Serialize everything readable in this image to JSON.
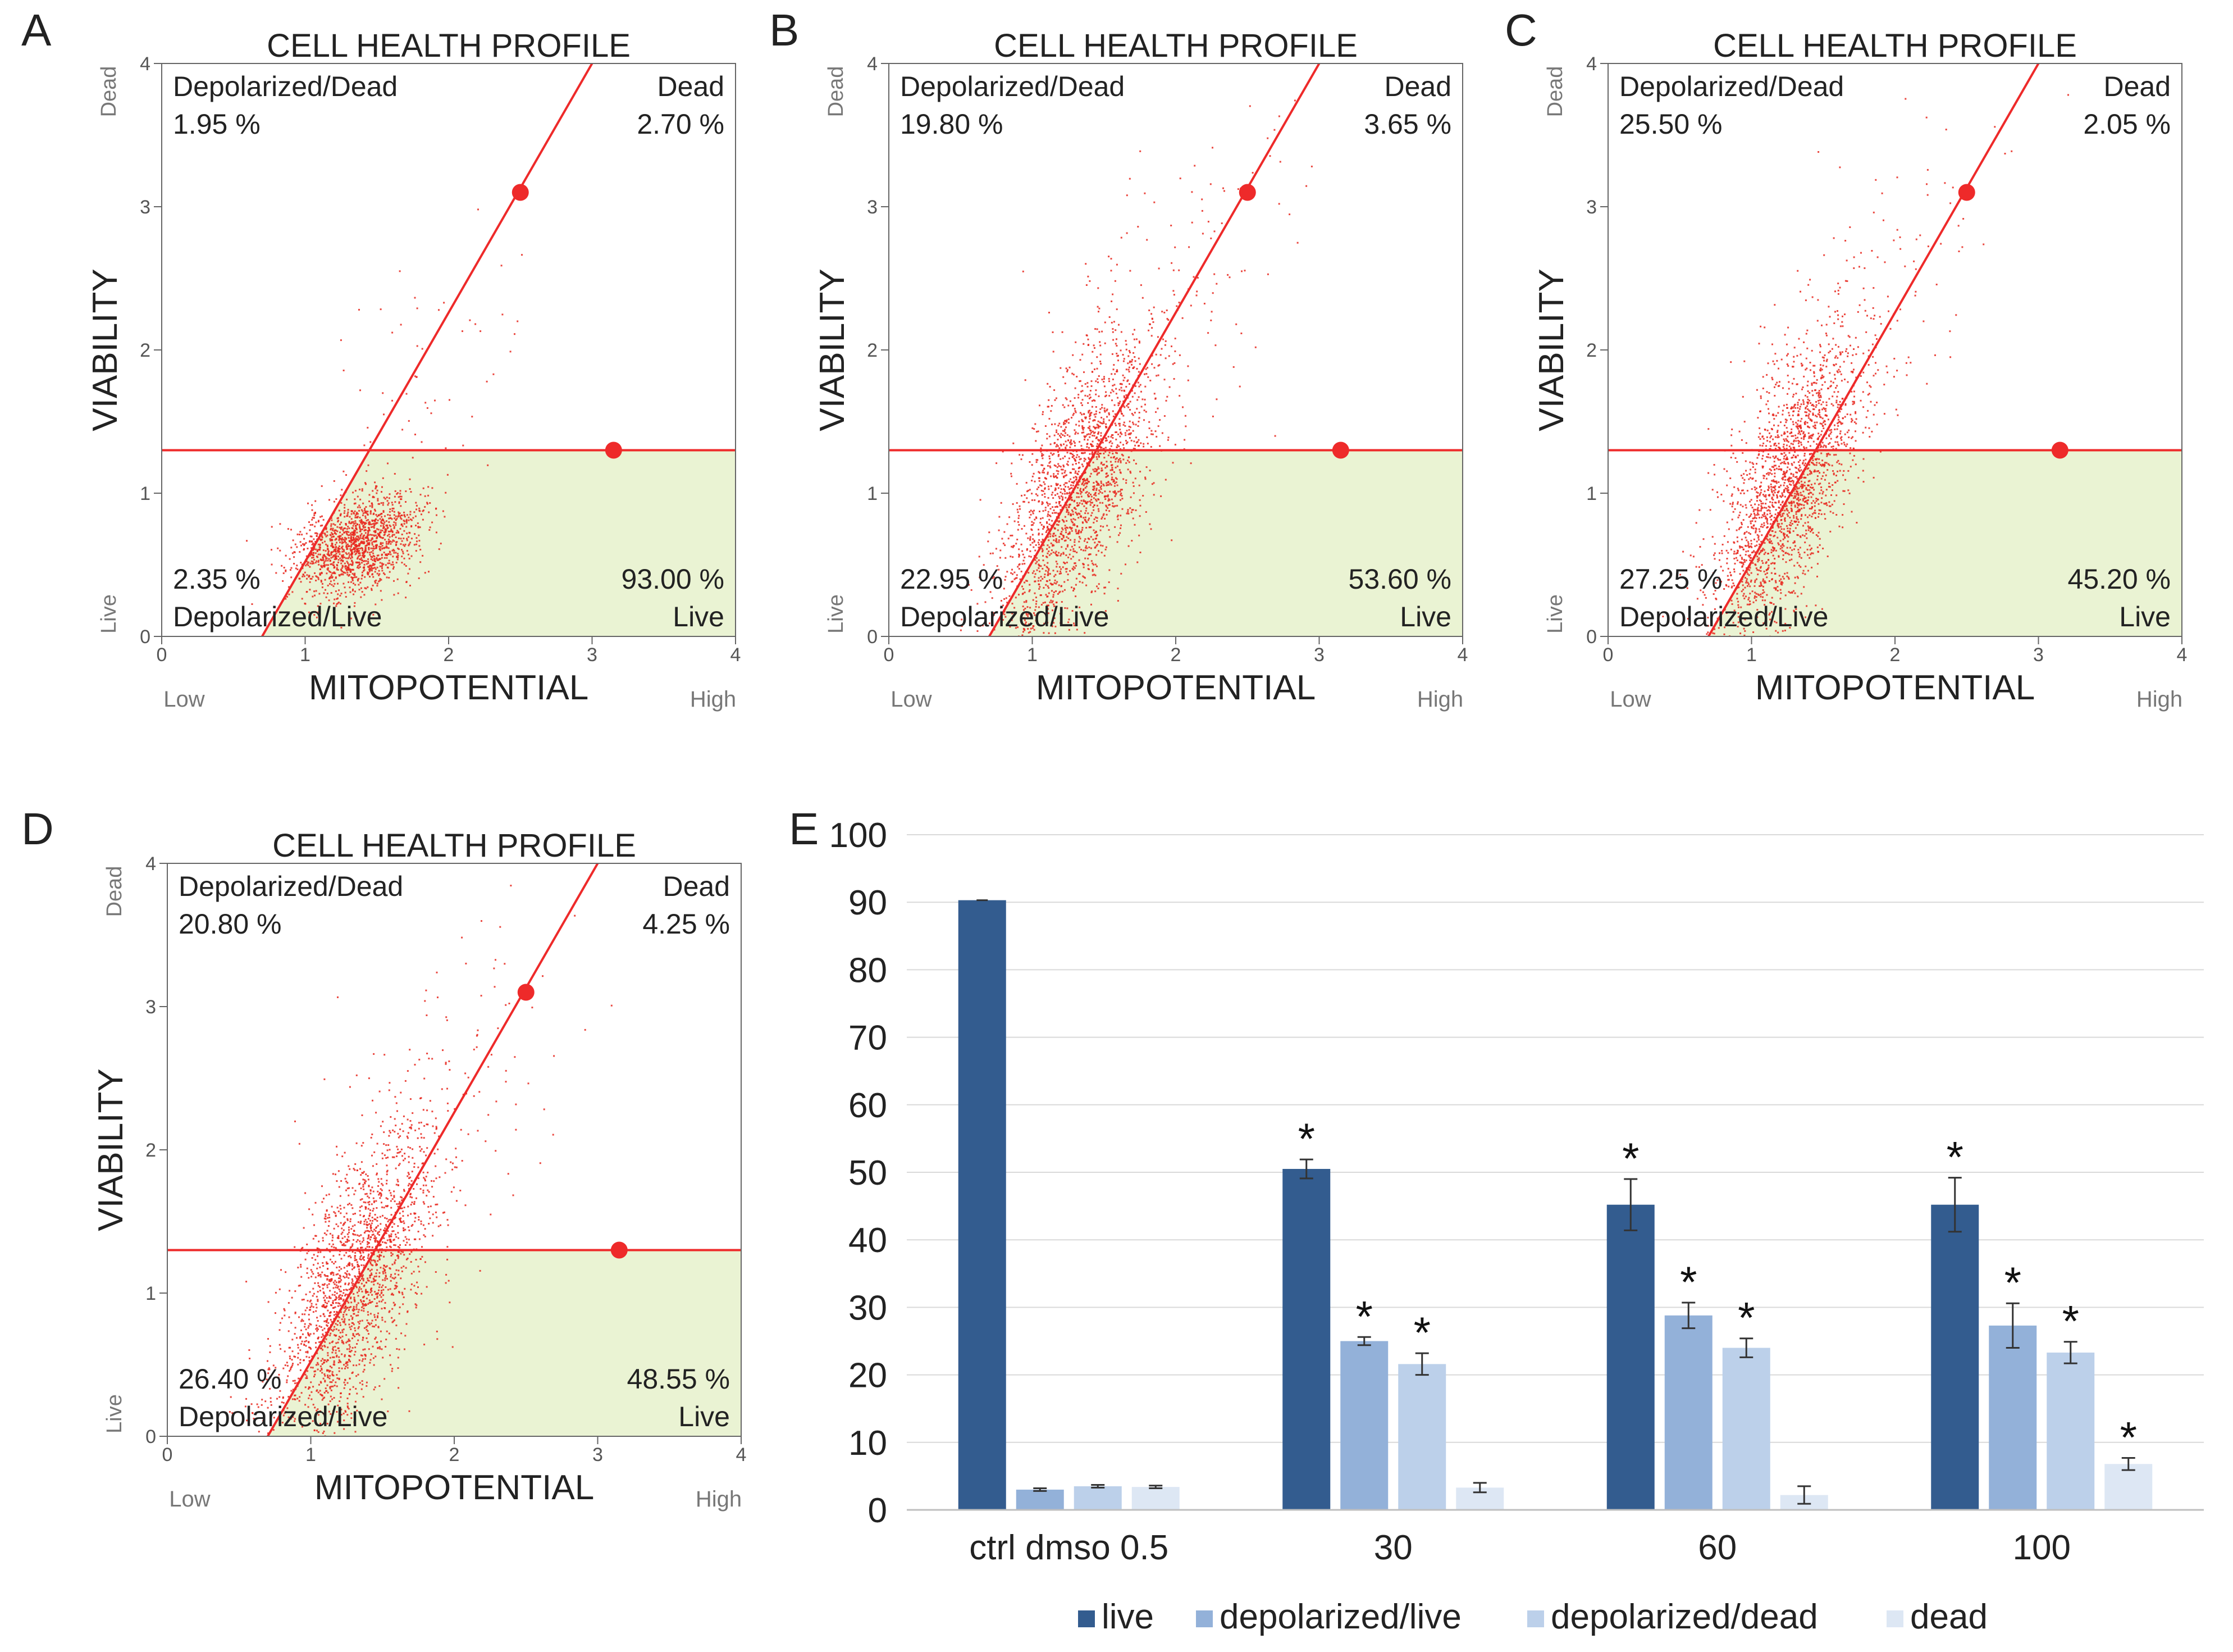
{
  "chart_data": [
    {
      "panel": "A",
      "type": "scatter",
      "title": "CELL HEALTH PROFILE",
      "xlabel": "MITOPOTENTIAL",
      "ylabel": "VIABILITY",
      "x_low_label": "Low",
      "x_high_label": "High",
      "y_low_label": "Live",
      "y_high_label": "Dead",
      "xlim": [
        0,
        4
      ],
      "ylim": [
        0,
        4
      ],
      "xticks": [
        "0",
        "1",
        "2",
        "3",
        "4"
      ],
      "yticks": [
        "0",
        "1",
        "2",
        "3",
        "4"
      ],
      "gate_horizontal_y": 1.3,
      "gate_diagonal": [
        [
          0.7,
          0
        ],
        [
          3.0,
          4.0
        ]
      ],
      "handles": [
        [
          2.5,
          3.1
        ],
        [
          3.15,
          1.3
        ]
      ],
      "quadrants": {
        "depolarized_dead": {
          "label": "Depolarized/Dead",
          "pct": "1.95 %"
        },
        "dead": {
          "label": "Dead",
          "pct": "2.70 %"
        },
        "depolarized_live": {
          "label": "Depolarized/Live",
          "pct": "2.35 %"
        },
        "live": {
          "label": "Live",
          "pct": "93.00 %"
        }
      },
      "cloud": {
        "cx": 1.35,
        "cy": 0.65,
        "sx": 0.22,
        "sy": 0.18,
        "rho": 0.35,
        "n": 1500,
        "seed": 11,
        "tail": {
          "n": 60,
          "cx": 1.9,
          "cy": 1.9,
          "sx": 0.45,
          "sy": 0.6,
          "rho": 0.6
        }
      }
    },
    {
      "panel": "B",
      "type": "scatter",
      "title": "CELL HEALTH PROFILE",
      "xlabel": "MITOPOTENTIAL",
      "ylabel": "VIABILITY",
      "x_low_label": "Low",
      "x_high_label": "High",
      "y_low_label": "Live",
      "y_high_label": "Dead",
      "xlim": [
        0,
        4
      ],
      "ylim": [
        0,
        4
      ],
      "xticks": [
        "0",
        "1",
        "2",
        "3",
        "4"
      ],
      "yticks": [
        "0",
        "1",
        "2",
        "3",
        "4"
      ],
      "gate_horizontal_y": 1.3,
      "gate_diagonal": [
        [
          0.7,
          0
        ],
        [
          3.0,
          4.0
        ]
      ],
      "handles": [
        [
          2.5,
          3.1
        ],
        [
          3.15,
          1.3
        ]
      ],
      "quadrants": {
        "depolarized_dead": {
          "label": "Depolarized/Dead",
          "pct": "19.80 %"
        },
        "dead": {
          "label": "Dead",
          "pct": "3.65 %"
        },
        "depolarized_live": {
          "label": "Depolarized/Live",
          "pct": "22.95 %"
        },
        "live": {
          "label": "Live",
          "pct": "53.60 %"
        }
      },
      "cloud": {
        "cx": 1.3,
        "cy": 1.0,
        "sx": 0.28,
        "sy": 0.55,
        "rho": 0.65,
        "n": 2000,
        "seed": 23,
        "tail": {
          "n": 120,
          "cx": 1.9,
          "cy": 2.3,
          "sx": 0.5,
          "sy": 0.7,
          "rho": 0.6
        }
      }
    },
    {
      "panel": "C",
      "type": "scatter",
      "title": "CELL HEALTH PROFILE",
      "xlabel": "MITOPOTENTIAL",
      "ylabel": "VIABILITY",
      "x_low_label": "Low",
      "x_high_label": "High",
      "y_low_label": "Live",
      "y_high_label": "Dead",
      "xlim": [
        0,
        4
      ],
      "ylim": [
        0,
        4
      ],
      "xticks": [
        "0",
        "1",
        "2",
        "3",
        "4"
      ],
      "yticks": [
        "0",
        "1",
        "2",
        "3",
        "4"
      ],
      "gate_horizontal_y": 1.3,
      "gate_diagonal": [
        [
          0.7,
          0
        ],
        [
          3.0,
          4.0
        ]
      ],
      "handles": [
        [
          2.5,
          3.1
        ],
        [
          3.15,
          1.3
        ]
      ],
      "quadrants": {
        "depolarized_dead": {
          "label": "Depolarized/Dead",
          "pct": "25.50 %"
        },
        "dead": {
          "label": "Dead",
          "pct": "2.05 %"
        },
        "depolarized_live": {
          "label": "Depolarized/Live",
          "pct": "27.25 %"
        },
        "live": {
          "label": "Live",
          "pct": "45.20 %"
        }
      },
      "cloud": {
        "cx": 1.25,
        "cy": 1.05,
        "sx": 0.26,
        "sy": 0.55,
        "rho": 0.65,
        "n": 2000,
        "seed": 37,
        "tail": {
          "n": 120,
          "cx": 1.8,
          "cy": 2.3,
          "sx": 0.45,
          "sy": 0.7,
          "rho": 0.6
        }
      }
    },
    {
      "panel": "D",
      "type": "scatter",
      "title": "CELL HEALTH PROFILE",
      "xlabel": "MITOPOTENTIAL",
      "ylabel": "VIABILITY",
      "x_low_label": "Low",
      "x_high_label": "High",
      "y_low_label": "Live",
      "y_high_label": "Dead",
      "xlim": [
        0,
        4
      ],
      "ylim": [
        0,
        4
      ],
      "xticks": [
        "0",
        "1",
        "2",
        "3",
        "4"
      ],
      "yticks": [
        "0",
        "1",
        "2",
        "3",
        "4"
      ],
      "gate_horizontal_y": 1.3,
      "gate_diagonal": [
        [
          0.7,
          0
        ],
        [
          3.0,
          4.0
        ]
      ],
      "handles": [
        [
          2.5,
          3.1
        ],
        [
          3.15,
          1.3
        ]
      ],
      "quadrants": {
        "depolarized_dead": {
          "label": "Depolarized/Dead",
          "pct": "20.80 %"
        },
        "dead": {
          "label": "Dead",
          "pct": "4.25 %"
        },
        "depolarized_live": {
          "label": "Depolarized/Live",
          "pct": "26.40 %"
        },
        "live": {
          "label": "Live",
          "pct": "48.55 %"
        }
      },
      "cloud": {
        "cx": 1.3,
        "cy": 1.05,
        "sx": 0.28,
        "sy": 0.55,
        "rho": 0.65,
        "n": 2000,
        "seed": 53,
        "tail": {
          "n": 130,
          "cx": 1.9,
          "cy": 2.3,
          "sx": 0.5,
          "sy": 0.7,
          "rho": 0.6
        }
      }
    },
    {
      "panel": "E",
      "type": "bar",
      "title": "",
      "xlabel": "",
      "ylabel": "",
      "ylim": [
        0,
        100
      ],
      "yticks": [
        0,
        10,
        20,
        30,
        40,
        50,
        60,
        70,
        80,
        90,
        100
      ],
      "categories": [
        "ctrl dmso 0.5",
        "30",
        "60",
        "100"
      ],
      "series": [
        {
          "name": "live",
          "color": "#335c8f",
          "values": [
            90.3,
            50.5,
            45.2,
            45.2
          ],
          "errors": [
            0,
            1.4,
            3.8,
            4.0
          ],
          "significant": [
            false,
            true,
            true,
            true
          ]
        },
        {
          "name": "depolarized/live",
          "color": "#93b1d9",
          "values": [
            3.0,
            25.0,
            28.8,
            27.3
          ],
          "errors": [
            0.2,
            0.6,
            1.9,
            3.3
          ],
          "significant": [
            false,
            true,
            true,
            true
          ]
        },
        {
          "name": "depolarized/dead",
          "color": "#bcd0ea",
          "values": [
            3.5,
            21.6,
            24.0,
            23.3
          ],
          "errors": [
            0.2,
            1.6,
            1.4,
            1.6
          ],
          "significant": [
            false,
            true,
            true,
            true
          ]
        },
        {
          "name": "dead",
          "color": "#dde7f4",
          "values": [
            3.4,
            3.3,
            2.2,
            6.8
          ],
          "errors": [
            0.2,
            0.7,
            1.3,
            0.9
          ],
          "significant": [
            false,
            false,
            false,
            true
          ]
        }
      ],
      "significance_marker": "*"
    }
  ],
  "colors": {
    "gate": "#ee2a2a",
    "dots": "#e8271d",
    "live_fill": "#eaf3d3",
    "grid": "#d9d9d9"
  }
}
